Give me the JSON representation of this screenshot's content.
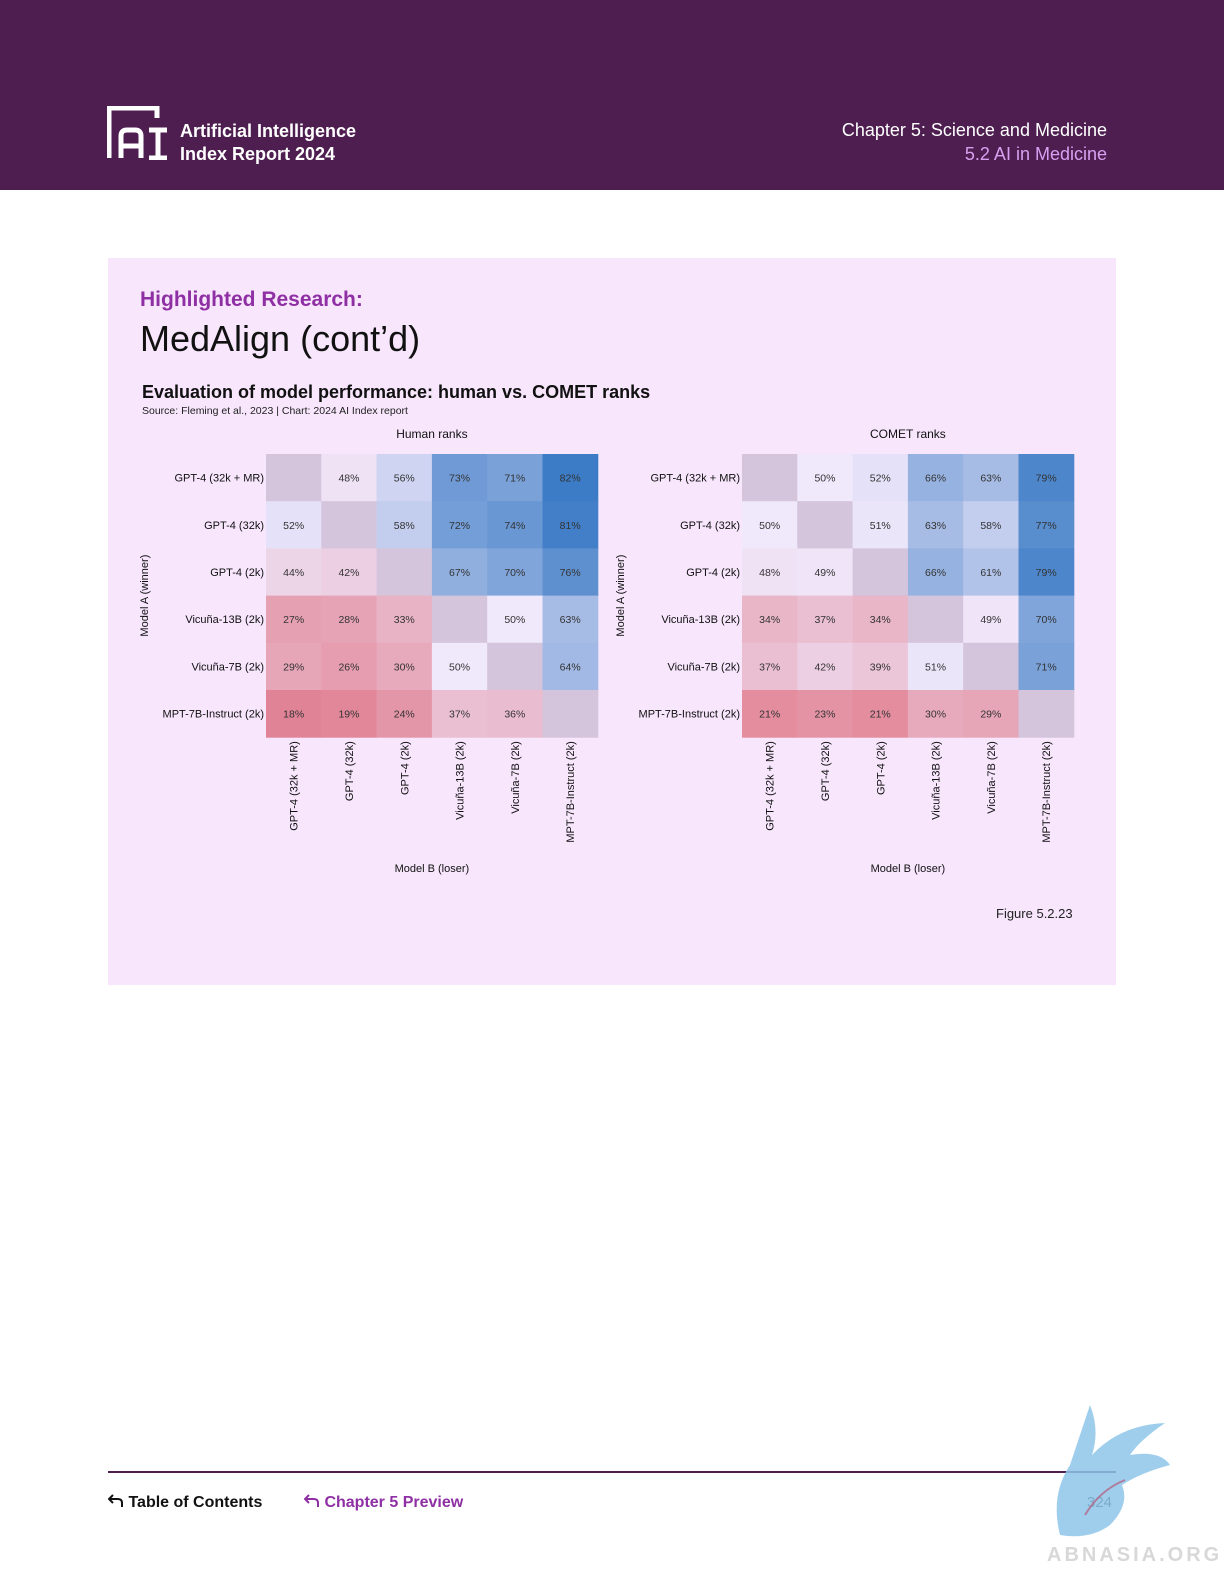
{
  "header": {
    "logo_icon": "ai-index-logo-icon",
    "brand_line1": "Artificial Intelligence",
    "brand_line2": "Index Report 2024",
    "chapter": "Chapter 5: Science and Medicine",
    "section": "5.2 AI in Medicine"
  },
  "content": {
    "highlight": "Highlighted Research:",
    "title": "MedAlign (cont’d)",
    "chart_title": "Evaluation of model performance: human vs. COMET ranks",
    "chart_source": "Source: Fleming et al., 2023 | Chart: 2024 AI Index report",
    "figure": "Figure 5.2.23"
  },
  "chart_data": [
    {
      "type": "heatmap",
      "title": "Human ranks",
      "ylabel": "Model A (winner)",
      "xlabel": "Model B (loser)",
      "rows": [
        "GPT-4 (32k + MR)",
        "GPT-4 (32k)",
        "GPT-4 (2k)",
        "Vicuña-13B (2k)",
        "Vicuña-7B (2k)",
        "MPT-7B-Instruct (2k)"
      ],
      "columns": [
        "GPT-4 (32k + MR)",
        "GPT-4 (32k)",
        "GPT-4 (2k)",
        "Vicuña-13B (2k)",
        "Vicuña-7B (2k)",
        "MPT-7B-Instruct (2k)"
      ],
      "values": [
        [
          null,
          48,
          56,
          73,
          71,
          82
        ],
        [
          52,
          null,
          58,
          72,
          74,
          81
        ],
        [
          44,
          42,
          null,
          67,
          70,
          76
        ],
        [
          27,
          28,
          33,
          null,
          50,
          63
        ],
        [
          29,
          26,
          30,
          50,
          null,
          64
        ],
        [
          18,
          19,
          24,
          37,
          36,
          null
        ]
      ],
      "unit": "%"
    },
    {
      "type": "heatmap",
      "title": "COMET ranks",
      "ylabel": "Model A (winner)",
      "xlabel": "Model B (loser)",
      "rows": [
        "GPT-4 (32k + MR)",
        "GPT-4 (32k)",
        "GPT-4 (2k)",
        "Vicuña-13B (2k)",
        "Vicuña-7B (2k)",
        "MPT-7B-Instruct (2k)"
      ],
      "columns": [
        "GPT-4 (32k + MR)",
        "GPT-4 (32k)",
        "GPT-4 (2k)",
        "Vicuña-13B (2k)",
        "Vicuña-7B (2k)",
        "MPT-7B-Instruct (2k)"
      ],
      "values": [
        [
          null,
          50,
          52,
          66,
          63,
          79
        ],
        [
          50,
          null,
          51,
          63,
          58,
          77
        ],
        [
          48,
          49,
          null,
          66,
          61,
          79
        ],
        [
          34,
          37,
          34,
          null,
          49,
          70
        ],
        [
          37,
          42,
          39,
          51,
          null,
          71
        ],
        [
          21,
          23,
          21,
          30,
          29,
          null
        ]
      ],
      "unit": "%"
    }
  ],
  "colors": {
    "header_bg": "#4e1e51",
    "panel_bg": "#f7e6fc",
    "accent": "#8e2fa4",
    "diagonal": "#d4c4dc",
    "low": "#e07a8c",
    "mid": "#f0e8fb",
    "high": "#3c7cc6"
  },
  "footer": {
    "toc_icon": "return-arrow-icon",
    "toc": "Table of Contents",
    "preview_icon": "return-arrow-icon",
    "preview": "Chapter 5 Preview",
    "page": "324"
  },
  "watermark": {
    "icon": "griffin-logo-icon",
    "text": "ABNASIA.ORG"
  }
}
